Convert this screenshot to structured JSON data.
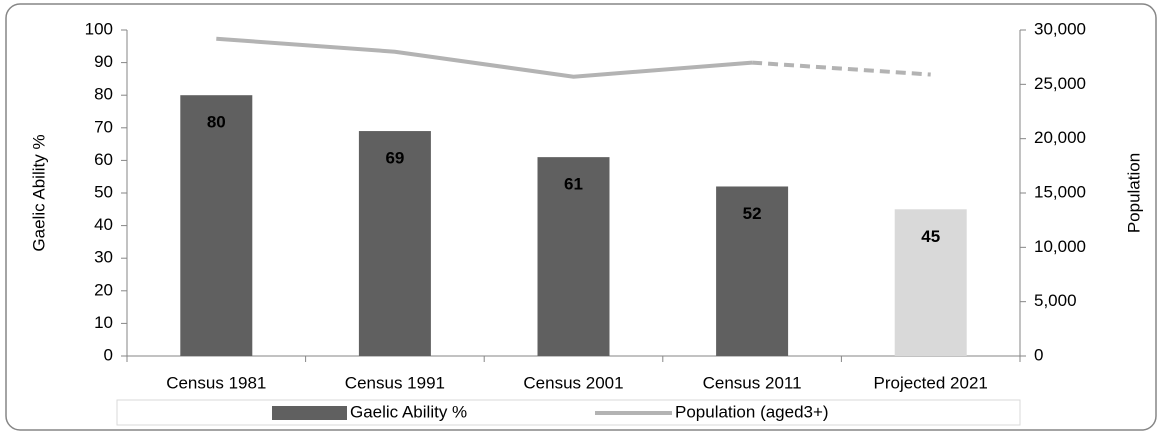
{
  "chart_data": {
    "type": "combo",
    "categories": [
      "Census 1981",
      "Census 1991",
      "Census 2001",
      "Census 2011",
      "Projected 2021"
    ],
    "series": [
      {
        "name": "Gaelic Ability %",
        "type": "bar",
        "colors": [
          "#606060",
          "#606060",
          "#606060",
          "#606060",
          "#d9d9d9"
        ],
        "values": [
          80,
          69,
          61,
          52,
          45
        ]
      },
      {
        "name": "Population (aged3+)",
        "type": "line",
        "axis": "y2",
        "color": "#b3b3b3",
        "dashed_from": "Census 2011",
        "values": [
          29200,
          28000,
          25700,
          27000,
          25900
        ]
      }
    ],
    "ylabel": "Gaelic Ability %",
    "y2label": "Population",
    "ylim": [
      0,
      100
    ],
    "yticks": [
      0,
      10,
      20,
      30,
      40,
      50,
      60,
      70,
      80,
      90,
      100
    ],
    "y2lim": [
      0,
      30000
    ],
    "y2ticks": [
      0,
      {
        "value": 5000,
        "label": "5,000"
      },
      {
        "value": 10000,
        "label": "10,000"
      },
      {
        "value": 15000,
        "label": "15,000"
      },
      {
        "value": 20000,
        "label": "20,000"
      },
      {
        "value": 25000,
        "label": "25,000"
      },
      {
        "value": 30000,
        "label": "30,000"
      }
    ],
    "legend": "bottom",
    "grid": false
  }
}
